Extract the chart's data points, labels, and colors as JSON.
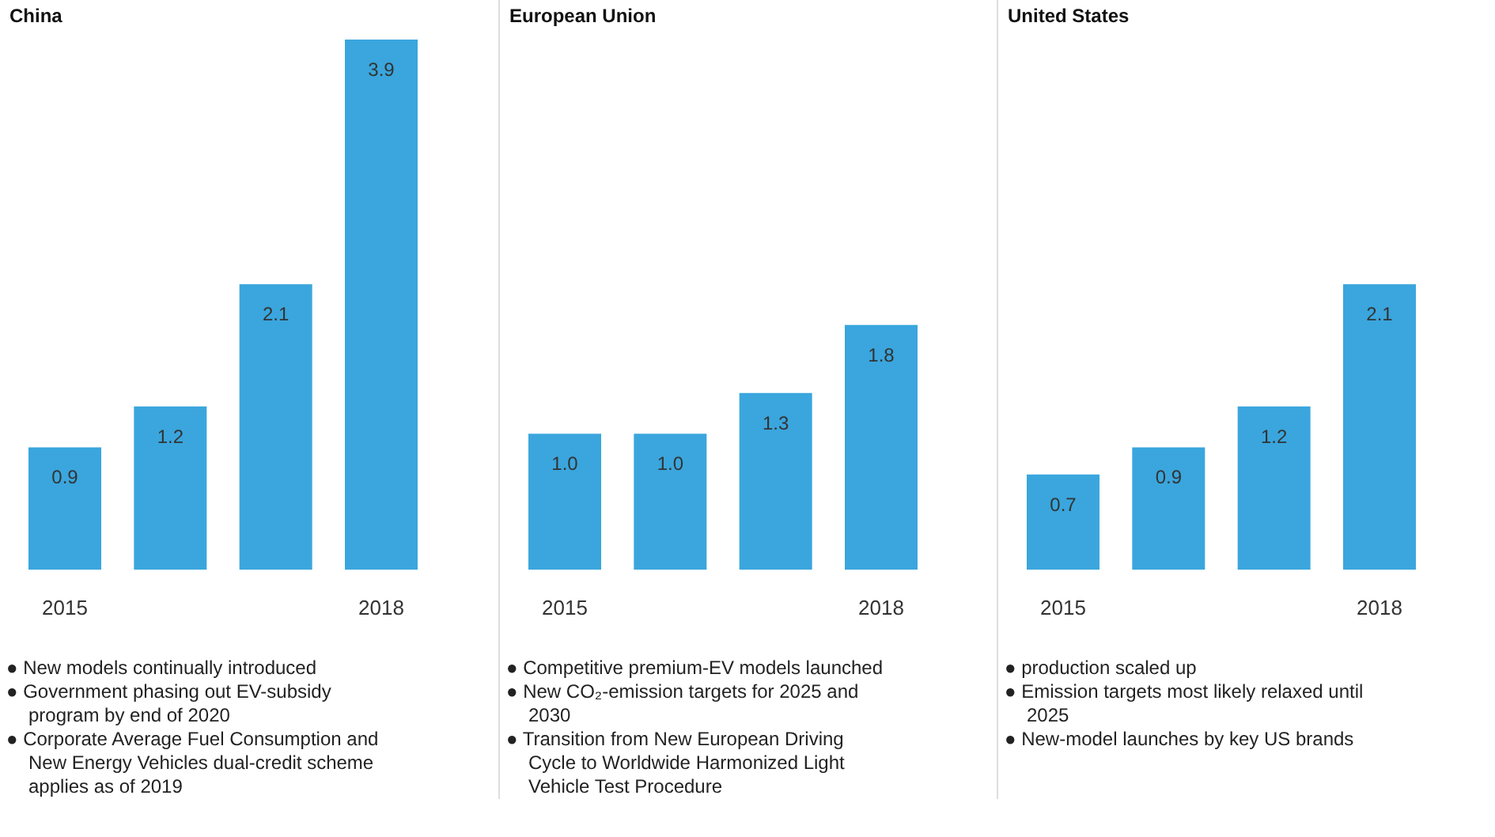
{
  "chart_data": [
    {
      "type": "bar",
      "title": "China",
      "categories": [
        "2015",
        null,
        null,
        "2018"
      ],
      "values": [
        0.9,
        1.2,
        2.1,
        3.9
      ],
      "value_labels": [
        "0.9",
        "1.2",
        "2.1",
        "3.9"
      ],
      "color": "#3aa6dd",
      "annotations": [
        "● New models continually introduced",
        "● Government phasing out EV-subsidy program by end of 2020",
        "● Corporate Average Fuel Consumption and New Energy Vehicles dual-credit scheme applies as of 2019"
      ]
    },
    {
      "type": "bar",
      "title": "European Union",
      "categories": [
        "2015",
        null,
        null,
        "2018"
      ],
      "values": [
        1.0,
        1.0,
        1.3,
        1.8
      ],
      "value_labels": [
        "1.0",
        "1.0",
        "1.3",
        "1.8"
      ],
      "color": "#3aa6dd",
      "annotations": [
        "● Competitive premium-EV models launched",
        "● New CO₂-emission targets for 2025 and 2030",
        "● Transition from New European Driving Cycle to Worldwide Harmonized Light Vehicle Test Procedure"
      ]
    },
    {
      "type": "bar",
      "title": "United States",
      "categories": [
        "2015",
        null,
        null,
        "2018"
      ],
      "values": [
        0.7,
        0.9,
        1.2,
        2.1
      ],
      "value_labels": [
        "0.7",
        "0.9",
        "1.2",
        "2.1"
      ],
      "color": "#3aa6dd",
      "annotations": [
        "● production scaled up",
        "● Emission targets most likely relaxed until 2025",
        "● New-model launches by key US brands"
      ]
    }
  ]
}
